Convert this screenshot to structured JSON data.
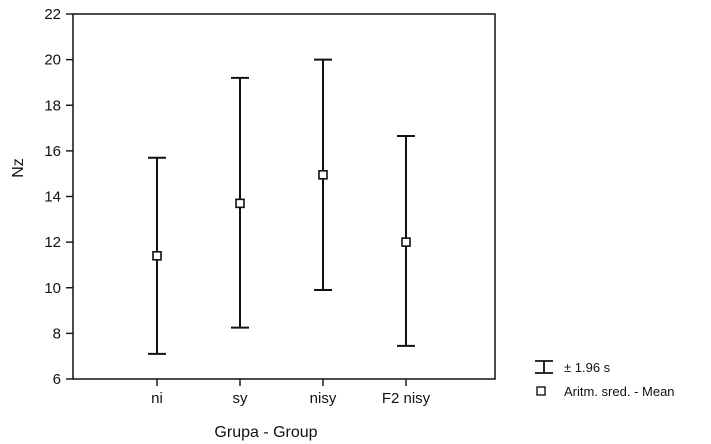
{
  "chart_data": {
    "type": "error-bar",
    "xlabel": "Grupa - Group",
    "ylabel": "Nz",
    "categories": [
      "ni",
      "sy",
      "nisy",
      "F2 nisy"
    ],
    "series": [
      {
        "name": "Aritm. sred. - Mean",
        "values": [
          11.4,
          13.7,
          14.95,
          12.0
        ],
        "lower": [
          7.1,
          8.25,
          9.9,
          7.45
        ],
        "upper": [
          15.7,
          19.2,
          20.0,
          16.65
        ]
      }
    ],
    "ylim": [
      6,
      22
    ],
    "yticks": [
      6,
      8,
      10,
      12,
      14,
      16,
      18,
      20,
      22
    ],
    "grid": false,
    "legend": {
      "position": "bottom-right",
      "items": [
        {
          "marker": "error-bar",
          "label": "± 1.96 s"
        },
        {
          "marker": "square",
          "label": "Aritm. sred. - Mean"
        }
      ]
    }
  }
}
